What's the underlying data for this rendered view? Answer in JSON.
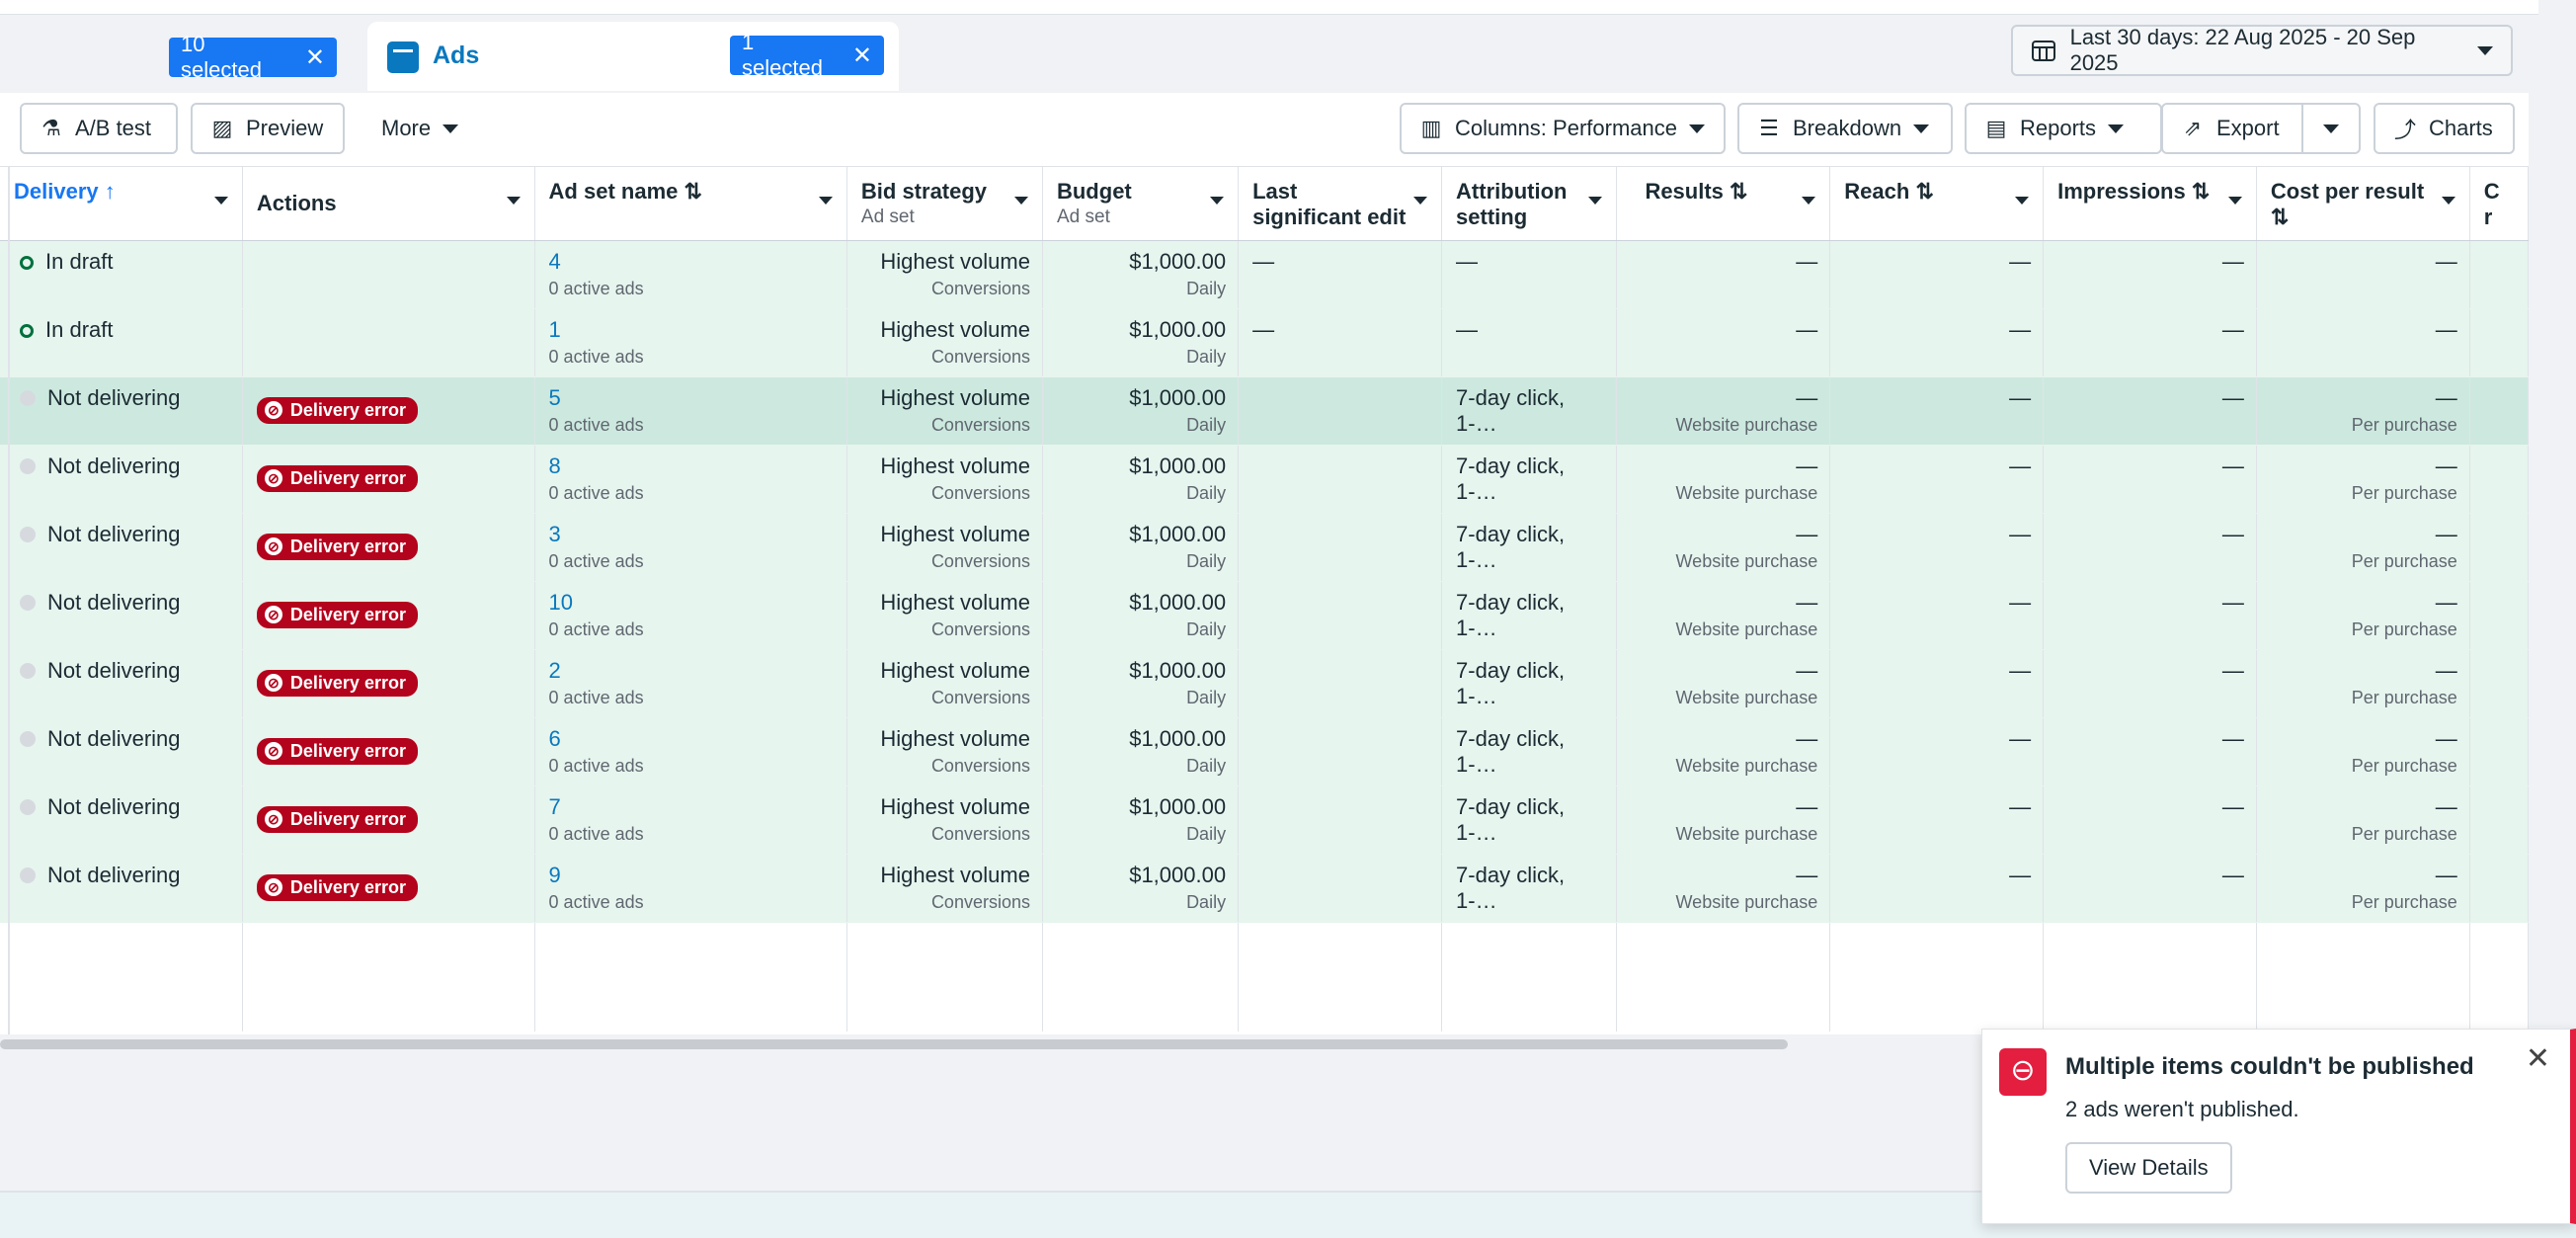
{
  "tabs": {
    "campaigns": {
      "selected": "10 selected"
    },
    "ads": {
      "title": "Ads",
      "selected": "1 selected"
    },
    "close_glyph": "✕",
    "date_range": "Last 30 days: 22 Aug 2025 - 20 Sep 2025"
  },
  "toolbar": {
    "ab_test": "A/B test",
    "preview": "Preview",
    "more": "More",
    "columns": "Columns: Performance",
    "breakdown": "Breakdown",
    "reports": "Reports",
    "export": "Export",
    "charts": "Charts"
  },
  "table": {
    "headers": {
      "delivery": "Delivery",
      "actions": "Actions",
      "ad_set_name": "Ad set name",
      "bid_strategy": "Bid strategy",
      "bid_strategy_sub": "Ad set",
      "budget": "Budget",
      "budget_sub": "Ad set",
      "last_edit": "Last significant edit",
      "attribution": "Attribution setting",
      "results": "Results",
      "reach": "Reach",
      "impressions": "Impressions",
      "cost_per_result": "Cost per result",
      "next_col": "C r"
    },
    "rows": [
      {
        "status": "In draft",
        "badge": "",
        "name": "4",
        "active_ads": "0 active ads",
        "bid": "Highest volume",
        "bid_sub": "Conversions",
        "budget": "$1,000.00",
        "budget_sub": "Daily",
        "last_edit": "—",
        "attribution": "—",
        "results": "—",
        "results_sub": "",
        "reach": "—",
        "impressions": "—",
        "cpr": "—",
        "cpr_sub": ""
      },
      {
        "status": "In draft",
        "badge": "",
        "name": "1",
        "active_ads": "0 active ads",
        "bid": "Highest volume",
        "bid_sub": "Conversions",
        "budget": "$1,000.00",
        "budget_sub": "Daily",
        "last_edit": "—",
        "attribution": "—",
        "results": "—",
        "results_sub": "",
        "reach": "—",
        "impressions": "—",
        "cpr": "—",
        "cpr_sub": ""
      },
      {
        "status": "Not delivering",
        "badge": "Delivery error",
        "name": "5",
        "active_ads": "0 active ads",
        "bid": "Highest volume",
        "bid_sub": "Conversions",
        "budget": "$1,000.00",
        "budget_sub": "Daily",
        "last_edit": "",
        "attribution": "7-day click, 1-…",
        "results": "—",
        "results_sub": "Website purchase",
        "reach": "—",
        "impressions": "—",
        "cpr": "—",
        "cpr_sub": "Per purchase"
      },
      {
        "status": "Not delivering",
        "badge": "Delivery error",
        "name": "8",
        "active_ads": "0 active ads",
        "bid": "Highest volume",
        "bid_sub": "Conversions",
        "budget": "$1,000.00",
        "budget_sub": "Daily",
        "last_edit": "",
        "attribution": "7-day click, 1-…",
        "results": "—",
        "results_sub": "Website purchase",
        "reach": "—",
        "impressions": "—",
        "cpr": "—",
        "cpr_sub": "Per purchase"
      },
      {
        "status": "Not delivering",
        "badge": "Delivery error",
        "name": "3",
        "active_ads": "0 active ads",
        "bid": "Highest volume",
        "bid_sub": "Conversions",
        "budget": "$1,000.00",
        "budget_sub": "Daily",
        "last_edit": "",
        "attribution": "7-day click, 1-…",
        "results": "—",
        "results_sub": "Website purchase",
        "reach": "—",
        "impressions": "—",
        "cpr": "—",
        "cpr_sub": "Per purchase"
      },
      {
        "status": "Not delivering",
        "badge": "Delivery error",
        "name": "10",
        "active_ads": "0 active ads",
        "bid": "Highest volume",
        "bid_sub": "Conversions",
        "budget": "$1,000.00",
        "budget_sub": "Daily",
        "last_edit": "",
        "attribution": "7-day click, 1-…",
        "results": "—",
        "results_sub": "Website purchase",
        "reach": "—",
        "impressions": "—",
        "cpr": "—",
        "cpr_sub": "Per purchase"
      },
      {
        "status": "Not delivering",
        "badge": "Delivery error",
        "name": "2",
        "active_ads": "0 active ads",
        "bid": "Highest volume",
        "bid_sub": "Conversions",
        "budget": "$1,000.00",
        "budget_sub": "Daily",
        "last_edit": "",
        "attribution": "7-day click, 1-…",
        "results": "—",
        "results_sub": "Website purchase",
        "reach": "—",
        "impressions": "—",
        "cpr": "—",
        "cpr_sub": "Per purchase"
      },
      {
        "status": "Not delivering",
        "badge": "Delivery error",
        "name": "6",
        "active_ads": "0 active ads",
        "bid": "Highest volume",
        "bid_sub": "Conversions",
        "budget": "$1,000.00",
        "budget_sub": "Daily",
        "last_edit": "",
        "attribution": "7-day click, 1-…",
        "results": "—",
        "results_sub": "Website purchase",
        "reach": "—",
        "impressions": "—",
        "cpr": "—",
        "cpr_sub": "Per purchase"
      },
      {
        "status": "Not delivering",
        "badge": "Delivery error",
        "name": "7",
        "active_ads": "0 active ads",
        "bid": "Highest volume",
        "bid_sub": "Conversions",
        "budget": "$1,000.00",
        "budget_sub": "Daily",
        "last_edit": "",
        "attribution": "7-day click, 1-…",
        "results": "—",
        "results_sub": "Website purchase",
        "reach": "—",
        "impressions": "—",
        "cpr": "—",
        "cpr_sub": "Per purchase"
      },
      {
        "status": "Not delivering",
        "badge": "Delivery error",
        "name": "9",
        "active_ads": "0 active ads",
        "bid": "Highest volume",
        "bid_sub": "Conversions",
        "budget": "$1,000.00",
        "budget_sub": "Daily",
        "last_edit": "",
        "attribution": "7-day click, 1-…",
        "results": "—",
        "results_sub": "Website purchase",
        "reach": "—",
        "impressions": "—",
        "cpr": "—",
        "cpr_sub": "Per purchase"
      }
    ]
  },
  "toast": {
    "title": "Multiple items couldn't be published",
    "body": "2 ads weren't published.",
    "button": "View Details",
    "close_glyph": "✕"
  },
  "colors": {
    "accent": "#1877f2",
    "error": "#b4031c",
    "draft_green": "#00703c",
    "row_bg": "#e6f5ee"
  }
}
